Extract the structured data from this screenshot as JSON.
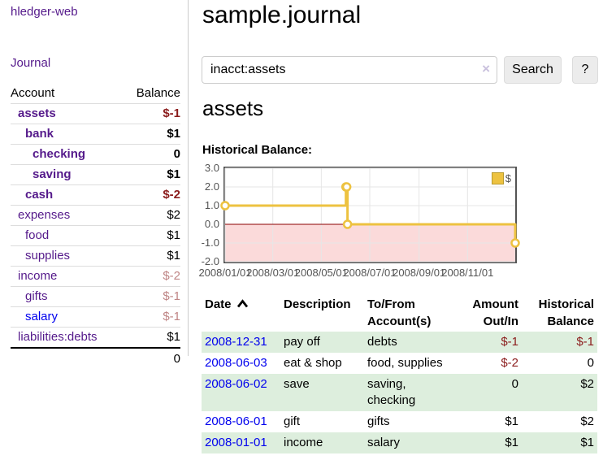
{
  "app": {
    "brand": "hledger-web",
    "nav": {
      "journal": "Journal"
    }
  },
  "sidebar": {
    "accounts_table": {
      "headers": {
        "account": "Account",
        "balance": "Balance"
      },
      "rows": [
        {
          "name": "assets",
          "balance": "$-1",
          "depth": 1,
          "bold": true,
          "link": "visited",
          "balance_tone": "neg"
        },
        {
          "name": "bank",
          "balance": "$1",
          "depth": 2,
          "bold": true,
          "link": "visited",
          "balance_tone": "pos"
        },
        {
          "name": "checking",
          "balance": "0",
          "depth": 3,
          "bold": true,
          "link": "visited",
          "balance_tone": "pos"
        },
        {
          "name": "saving",
          "balance": "$1",
          "depth": 3,
          "bold": true,
          "link": "visited",
          "balance_tone": "pos"
        },
        {
          "name": "cash",
          "balance": "$-2",
          "depth": 2,
          "bold": true,
          "link": "visited",
          "balance_tone": "neg"
        },
        {
          "name": "expenses",
          "balance": "$2",
          "depth": 1,
          "bold": false,
          "link": "visited",
          "balance_tone": "pos"
        },
        {
          "name": "food",
          "balance": "$1",
          "depth": 2,
          "bold": false,
          "link": "visited",
          "balance_tone": "pos"
        },
        {
          "name": "supplies",
          "balance": "$1",
          "depth": 2,
          "bold": false,
          "link": "visited",
          "balance_tone": "pos"
        },
        {
          "name": "income",
          "balance": "$-2",
          "depth": 1,
          "bold": false,
          "link": "visited",
          "balance_tone": "neg-muted"
        },
        {
          "name": "gifts",
          "balance": "$-1",
          "depth": 2,
          "bold": false,
          "link": "visited",
          "balance_tone": "neg-muted"
        },
        {
          "name": "salary",
          "balance": "$-1",
          "depth": 2,
          "bold": false,
          "link": "unvisited",
          "balance_tone": "neg-muted"
        },
        {
          "name": "liabilities:debts",
          "balance": "$1",
          "depth": 1,
          "bold": false,
          "link": "visited",
          "balance_tone": "pos"
        }
      ],
      "total": "0"
    }
  },
  "main": {
    "title": "sample.journal",
    "search": {
      "value": "inacct:assets",
      "clear_label": "×",
      "button_label": "Search",
      "help_label": "?"
    },
    "account_heading": "assets",
    "chart_label": "Historical Balance:"
  },
  "chart_data": {
    "type": "line",
    "title": "Historical Balance",
    "xlabel": "",
    "ylabel": "",
    "steps": true,
    "grid": true,
    "legend_position": "top-right",
    "xlim": [
      "2008-01-01",
      "2008-12-31"
    ],
    "ylim": [
      -2.0,
      3.0
    ],
    "y_ticks": [
      3.0,
      2.0,
      1.0,
      0.0,
      -1.0,
      -2.0
    ],
    "x_ticks": [
      {
        "label": "2008/01/01",
        "date": "2008-01-01"
      },
      {
        "label": "2008/03/01",
        "date": "2008-03-01"
      },
      {
        "label": "2008/05/01",
        "date": "2008-05-01"
      },
      {
        "label": "2008/07/01",
        "date": "2008-07-01"
      },
      {
        "label": "2008/09/01",
        "date": "2008-09-01"
      },
      {
        "label": "2008/11/01",
        "date": "2008-11-01"
      }
    ],
    "series": [
      {
        "name": "$",
        "color": "#edc240",
        "points": [
          [
            "2008-01-01",
            1.0
          ],
          [
            "2008-06-01",
            2.0
          ],
          [
            "2008-06-02",
            2.0
          ],
          [
            "2008-06-03",
            0.0
          ],
          [
            "2008-12-31",
            -1.0
          ]
        ]
      }
    ],
    "negative_region_color": "#fbdada",
    "zero_line_color": "#8b0000",
    "gridline_color": "#e6e6e6",
    "border_color": "#545454"
  },
  "register_table": {
    "headers": {
      "date": "Date",
      "description": "Description",
      "accounts": "To/From Account(s)",
      "amount": "Amount Out/In",
      "balance": "Historical Balance"
    },
    "sort": {
      "column": "date",
      "direction": "ascending"
    },
    "rows": [
      {
        "date": "2008-12-31",
        "description": "pay off",
        "accounts": "debts",
        "amount": "$-1",
        "amount_tone": "neg",
        "balance": "$-1",
        "balance_tone": "neg"
      },
      {
        "date": "2008-06-03",
        "description": "eat & shop",
        "accounts": "food, supplies",
        "amount": "$-2",
        "amount_tone": "neg",
        "balance": "0",
        "balance_tone": "pos"
      },
      {
        "date": "2008-06-02",
        "description": "save",
        "accounts": "saving, checking",
        "amount": "0",
        "amount_tone": "pos",
        "balance": "$2",
        "balance_tone": "pos"
      },
      {
        "date": "2008-06-01",
        "description": "gift",
        "accounts": "gifts",
        "amount": "$1",
        "amount_tone": "pos",
        "balance": "$2",
        "balance_tone": "pos"
      },
      {
        "date": "2008-01-01",
        "description": "income",
        "accounts": "salary",
        "amount": "$1",
        "amount_tone": "pos",
        "balance": "$1",
        "balance_tone": "pos"
      }
    ]
  },
  "colors": {
    "link_visited_purple": "#551a8b",
    "link_unvisited_blue": "#0000ee",
    "negative_strong": "#8b1c1c",
    "negative_muted": "#bf8585",
    "row_stripe_green": "#ddeedd",
    "series_gold": "#edc240",
    "negative_region_pink": "#fbdada",
    "zero_line_dark_red": "#8b0000"
  }
}
